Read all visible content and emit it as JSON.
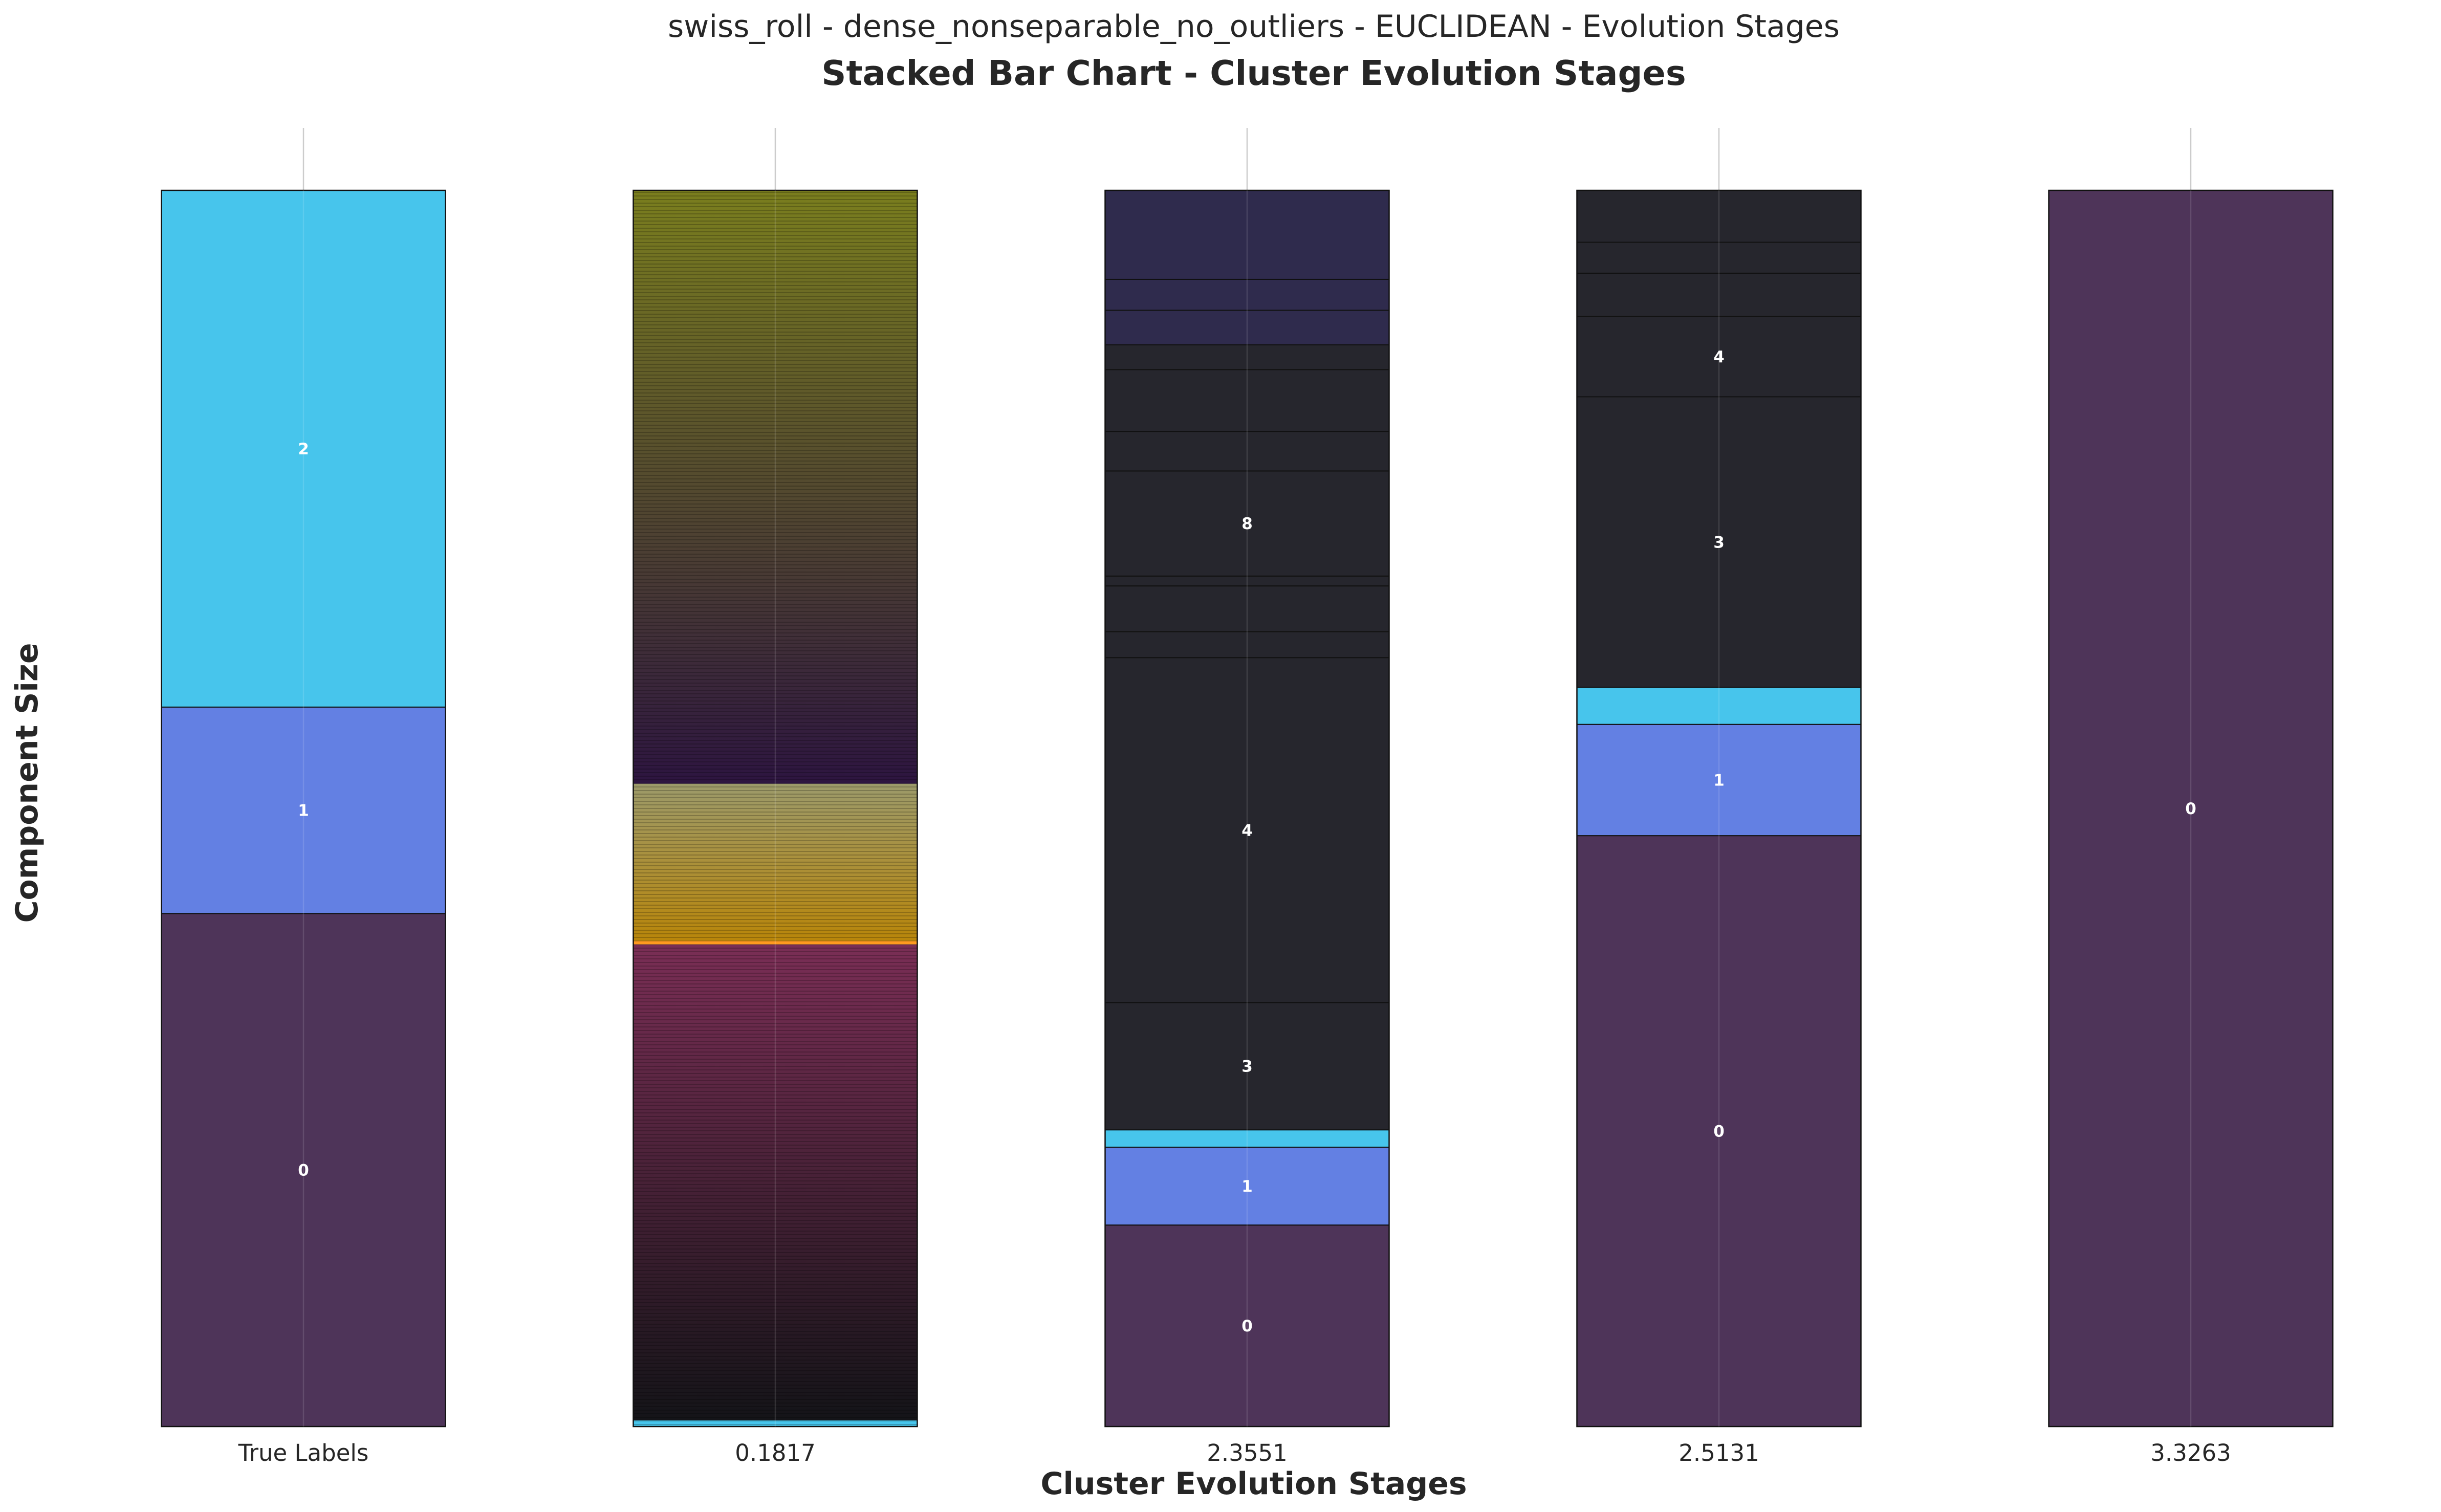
{
  "suptitle": "swiss_roll - dense_nonseparable_no_outliers - EUCLIDEAN - Evolution Stages",
  "chart_data": {
    "type": "bar",
    "stacked": true,
    "title": "Stacked Bar Chart - Cluster Evolution Stages",
    "xlabel": "Cluster Evolution Stages",
    "ylabel": "Component Size",
    "categories": [
      "True Labels",
      "0.1817",
      "2.3551",
      "2.5131",
      "3.3263"
    ],
    "ylim": [
      0,
      1
    ],
    "grid": "vertical",
    "colors": {
      "cluster_0": "#4e3459",
      "cluster_1": "#6380e3",
      "cluster_2": "#47c5ec",
      "merged_dark": "#26262d",
      "merged_purple": "#2f2b4d"
    },
    "bars": [
      {
        "category": "True Labels",
        "segments": [
          {
            "label": "0",
            "value": 0.415,
            "color": "#4e3459"
          },
          {
            "label": "1",
            "value": 0.167,
            "color": "#6380e3"
          },
          {
            "label": "2",
            "value": 0.418,
            "color": "#47c5ec"
          }
        ]
      },
      {
        "category": "0.1817",
        "gradient": true,
        "note_segments": "many single-point components",
        "bands": [
          {
            "from": 0.0,
            "to": 0.005,
            "color": "#47c5ec"
          },
          {
            "from": 0.005,
            "to": 0.39,
            "color_start": "#141418",
            "color_end": "#7a2e55"
          },
          {
            "from": 0.39,
            "to": 0.393,
            "color": "#ff9a1f"
          },
          {
            "from": 0.393,
            "to": 0.52,
            "color_start": "#b8860b",
            "color_end": "#9c9a6a"
          },
          {
            "from": 0.52,
            "to": 1.0,
            "color_start": "#2d1540",
            "color_end": "#7a7e1e"
          }
        ]
      },
      {
        "category": "2.3551",
        "segments": [
          {
            "label": "0",
            "value": 0.163,
            "color": "#4e3459"
          },
          {
            "label": "1",
            "value": 0.063,
            "color": "#6380e3"
          },
          {
            "label": "",
            "value": 0.014,
            "color": "#47c5ec"
          },
          {
            "label": "3",
            "value": 0.103,
            "color": "#26262d"
          },
          {
            "label": "4",
            "value": 0.279,
            "color": "#26262d"
          },
          {
            "label": "",
            "value": 0.021,
            "color": "#26262d"
          },
          {
            "label": "",
            "value": 0.037,
            "color": "#26262d"
          },
          {
            "label": "",
            "value": 0.008,
            "color": "#26262d"
          },
          {
            "label": "8",
            "value": 0.085,
            "color": "#26262d"
          },
          {
            "label": "",
            "value": 0.032,
            "color": "#26262d"
          },
          {
            "label": "",
            "value": 0.05,
            "color": "#26262d"
          },
          {
            "label": "",
            "value": 0.02,
            "color": "#26262d"
          },
          {
            "label": "",
            "value": 0.028,
            "color": "#2f2b4d"
          },
          {
            "label": "",
            "value": 0.025,
            "color": "#2f2b4d"
          },
          {
            "label": "",
            "value": 0.072,
            "color": "#2f2b4d"
          }
        ]
      },
      {
        "category": "2.5131",
        "segments": [
          {
            "label": "0",
            "value": 0.478,
            "color": "#4e3459"
          },
          {
            "label": "1",
            "value": 0.09,
            "color": "#6380e3"
          },
          {
            "label": "",
            "value": 0.03,
            "color": "#47c5ec"
          },
          {
            "label": "3",
            "value": 0.235,
            "color": "#26262d"
          },
          {
            "label": "4",
            "value": 0.065,
            "color": "#26262d"
          },
          {
            "label": "",
            "value": 0.035,
            "color": "#26262d"
          },
          {
            "label": "",
            "value": 0.025,
            "color": "#26262d"
          },
          {
            "label": "",
            "value": 0.042,
            "color": "#26262d"
          }
        ]
      },
      {
        "category": "3.3263",
        "segments": [
          {
            "label": "0",
            "value": 1.0,
            "color": "#4e3459"
          }
        ]
      }
    ]
  }
}
